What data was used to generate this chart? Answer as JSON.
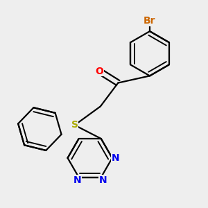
{
  "bg_color": "#eeeeee",
  "bond_color": "#000000",
  "bond_width": 1.6,
  "atom_labels": {
    "O": {
      "color": "#ff0000",
      "fontsize": 10
    },
    "S": {
      "color": "#aaaa00",
      "fontsize": 10
    },
    "N": {
      "color": "#0000ee",
      "fontsize": 10
    },
    "Br": {
      "color": "#cc6600",
      "fontsize": 10
    }
  }
}
